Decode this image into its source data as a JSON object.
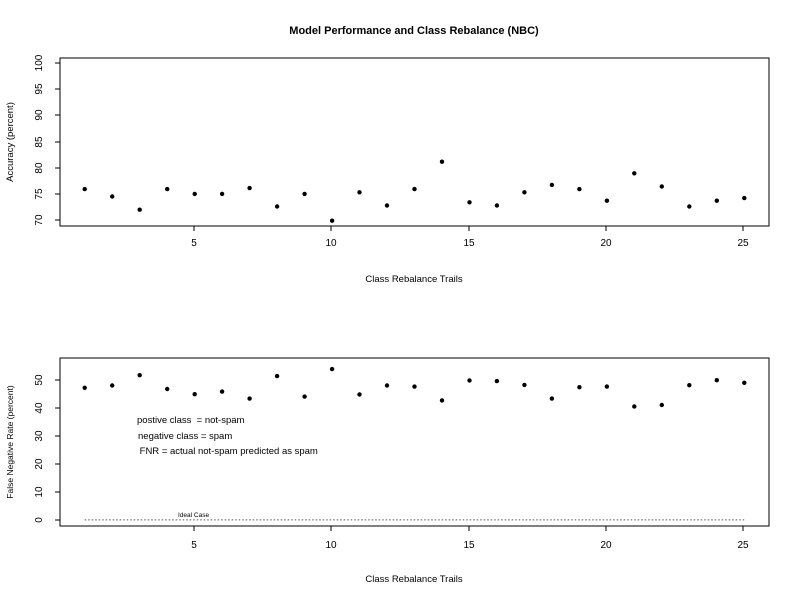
{
  "chart_data": [
    {
      "type": "scatter",
      "title": "Model Performance and Class Rebalance (NBC)",
      "xlabel": "Class Rebalance Trails",
      "ylabel": "Accuracy (percent)",
      "xlim": [
        0.1,
        25.9
      ],
      "ylim": [
        69.1,
        101
      ],
      "x_ticks": [
        "5",
        "10",
        "15",
        "20",
        "25"
      ],
      "y_ticks": [
        "70",
        "75",
        "80",
        "85",
        "90",
        "95",
        "100"
      ],
      "x": [
        1,
        2,
        3,
        4,
        5,
        6,
        7,
        8,
        9,
        10,
        11,
        12,
        13,
        14,
        15,
        16,
        17,
        18,
        19,
        20,
        21,
        22,
        23,
        24,
        25
      ],
      "values": [
        76.1,
        74.7,
        72.2,
        76.1,
        75.2,
        75.2,
        76.3,
        72.8,
        75.2,
        70.1,
        75.5,
        73.0,
        76.1,
        81.3,
        73.6,
        73.0,
        75.5,
        76.9,
        76.1,
        73.9,
        79.1,
        76.6,
        72.8,
        73.9,
        74.4
      ],
      "grid": false
    },
    {
      "type": "scatter",
      "title": "",
      "xlabel": "Class Rebalance Trails",
      "ylabel": "False Negative Rate (percent)",
      "xlim": [
        0.1,
        25.9
      ],
      "ylim": [
        -2.1,
        55.4
      ],
      "x_ticks": [
        "5",
        "10",
        "15",
        "20",
        "25"
      ],
      "y_ticks": [
        "0",
        "10",
        "20",
        "30",
        "40",
        "50"
      ],
      "x": [
        1,
        2,
        3,
        4,
        5,
        6,
        7,
        8,
        9,
        10,
        11,
        12,
        13,
        14,
        15,
        16,
        17,
        18,
        19,
        20,
        21,
        22,
        23,
        24,
        25
      ],
      "values": [
        45.2,
        46.0,
        49.5,
        44.8,
        43.0,
        43.9,
        41.5,
        49.2,
        42.2,
        51.6,
        42.9,
        46.0,
        45.6,
        40.9,
        47.7,
        47.5,
        46.2,
        41.5,
        45.4,
        45.6,
        38.8,
        39.3,
        46.1,
        47.8,
        46.9
      ],
      "reference_line": {
        "y": 0,
        "x_range": [
          1,
          25
        ],
        "label": "Ideal Case",
        "style": "dotted"
      },
      "annotations": [
        "postive class  = not-spam",
        "negative class = spam",
        " FNR = actual not-spam predicted as spam"
      ],
      "grid": false
    }
  ]
}
